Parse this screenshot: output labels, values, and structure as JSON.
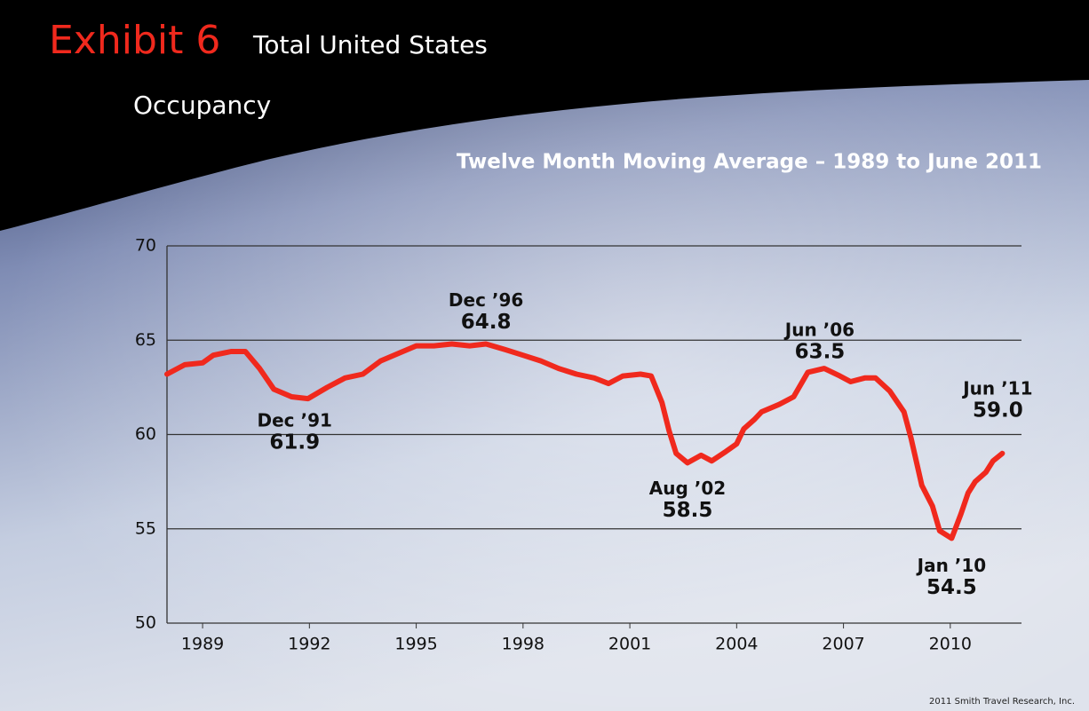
{
  "chart_data": {
    "type": "line",
    "title_exhibit": "Exhibit 6",
    "title": "Total United States",
    "title_line2": "Occupancy",
    "subtitle": "Twelve Month Moving Average – 1989 to June 2011",
    "source": "2011 Smith Travel Research, Inc.",
    "x": [
      1988.0,
      1988.5,
      1989.0,
      1989.3,
      1989.8,
      1990.2,
      1990.6,
      1991.0,
      1991.5,
      1991.96,
      1992.5,
      1993.0,
      1993.5,
      1994.0,
      1994.5,
      1995.0,
      1995.5,
      1996.0,
      1996.5,
      1996.96,
      1997.5,
      1998.0,
      1998.5,
      1999.0,
      1999.5,
      2000.0,
      2000.4,
      2000.8,
      2001.3,
      2001.6,
      2001.9,
      2002.1,
      2002.3,
      2002.62,
      2003.0,
      2003.3,
      2003.7,
      2004.0,
      2004.2,
      2004.5,
      2004.7,
      2005.2,
      2005.6,
      2006.0,
      2006.46,
      2006.9,
      2007.2,
      2007.6,
      2007.9,
      2008.3,
      2008.7,
      2008.9,
      2009.2,
      2009.5,
      2009.7,
      2010.04,
      2010.3,
      2010.5,
      2010.7,
      2011.0,
      2011.2,
      2011.46
    ],
    "series": [
      {
        "name": "Occupancy",
        "color": "#f0291d",
        "values": [
          63.2,
          63.7,
          63.8,
          64.2,
          64.4,
          64.4,
          63.5,
          62.4,
          62.0,
          61.9,
          62.5,
          63.0,
          63.2,
          63.9,
          64.3,
          64.7,
          64.7,
          64.8,
          64.7,
          64.8,
          64.5,
          64.2,
          63.9,
          63.5,
          63.2,
          63.0,
          62.7,
          63.1,
          63.2,
          63.1,
          61.7,
          60.2,
          59.0,
          58.5,
          58.9,
          58.6,
          59.1,
          59.5,
          60.3,
          60.8,
          61.2,
          61.6,
          62.0,
          63.3,
          63.5,
          63.1,
          62.8,
          63.0,
          63.0,
          62.3,
          61.2,
          59.8,
          57.3,
          56.2,
          54.9,
          54.5,
          55.8,
          56.9,
          57.5,
          58.0,
          58.6,
          59.0
        ]
      }
    ],
    "xlim": [
      1988,
      2012
    ],
    "xticks": [
      1989,
      1992,
      1995,
      1998,
      2001,
      2004,
      2007,
      2010
    ],
    "ylim": [
      50,
      70
    ],
    "yticks": [
      50,
      55,
      60,
      65,
      70
    ],
    "grid": true,
    "annotations": [
      {
        "text": "Dec ’91",
        "x": 1991.96,
        "y": 61.9,
        "value_label": "61.9"
      },
      {
        "text": "Dec ’96",
        "x": 1996.96,
        "y": 64.8,
        "value_label": "64.8"
      },
      {
        "text": "Aug ’02",
        "x": 2002.62,
        "y": 58.5,
        "value_label": "58.5"
      },
      {
        "text": "Jun ’06",
        "x": 2006.46,
        "y": 63.5,
        "value_label": "63.5"
      },
      {
        "text": "Jan ’10",
        "x": 2010.04,
        "y": 54.5,
        "value_label": "54.5"
      },
      {
        "text": "Jun ’11",
        "x": 2011.46,
        "y": 59.0,
        "value_label": "59.0"
      }
    ]
  }
}
